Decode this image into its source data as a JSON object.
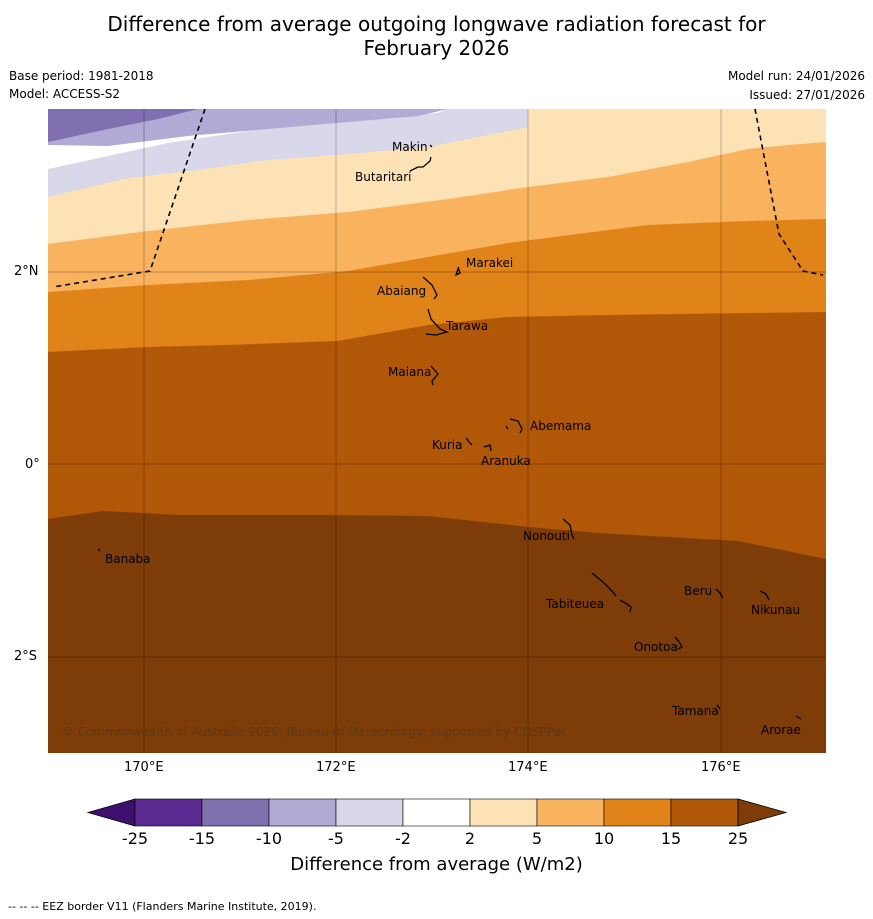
{
  "title": {
    "line1": "Difference from average outgoing longwave radiation forecast for",
    "line2": "February 2026"
  },
  "meta": {
    "base_period": "Base period: 1981-2018",
    "model": "Model: ACCESS-S2",
    "model_run": "Model run: 24/01/2026",
    "issued": "Issued: 27/01/2026"
  },
  "axes": {
    "lat_labels": [
      "2°N",
      "0°",
      "2°S"
    ],
    "lon_labels": [
      "170°E",
      "172°E",
      "174°E",
      "176°E"
    ]
  },
  "places": [
    "Makin",
    "Butaritari",
    "Marakei",
    "Abaiang",
    "Tarawa",
    "Maiana",
    "Abemama",
    "Kuria",
    "Aranuka",
    "Banaba",
    "Nonouti",
    "Tabiteuea",
    "Beru",
    "Nikunau",
    "Onotoa",
    "Tamana",
    "Arorae"
  ],
  "copyright": "© Commonwealth of Australia 2026, Bureau of Meteorology, supported by COSPPac",
  "colorbar": {
    "ticks": [
      "-25",
      "-15",
      "-10",
      "-5",
      "-2",
      "2",
      "5",
      "10",
      "15",
      "25"
    ],
    "colors": [
      "#3f0f6e",
      "#5a2a90",
      "#8070b0",
      "#b0aad4",
      "#d8d8ea",
      "#ffffff",
      "#fde2b6",
      "#f9b35f",
      "#e08318",
      "#b05708",
      "#7d3c08"
    ],
    "label": "Difference from average (W/m2)"
  },
  "footer": "--  --  -- EEZ border V11 (Flanders Marine Institute, 2019)."
}
